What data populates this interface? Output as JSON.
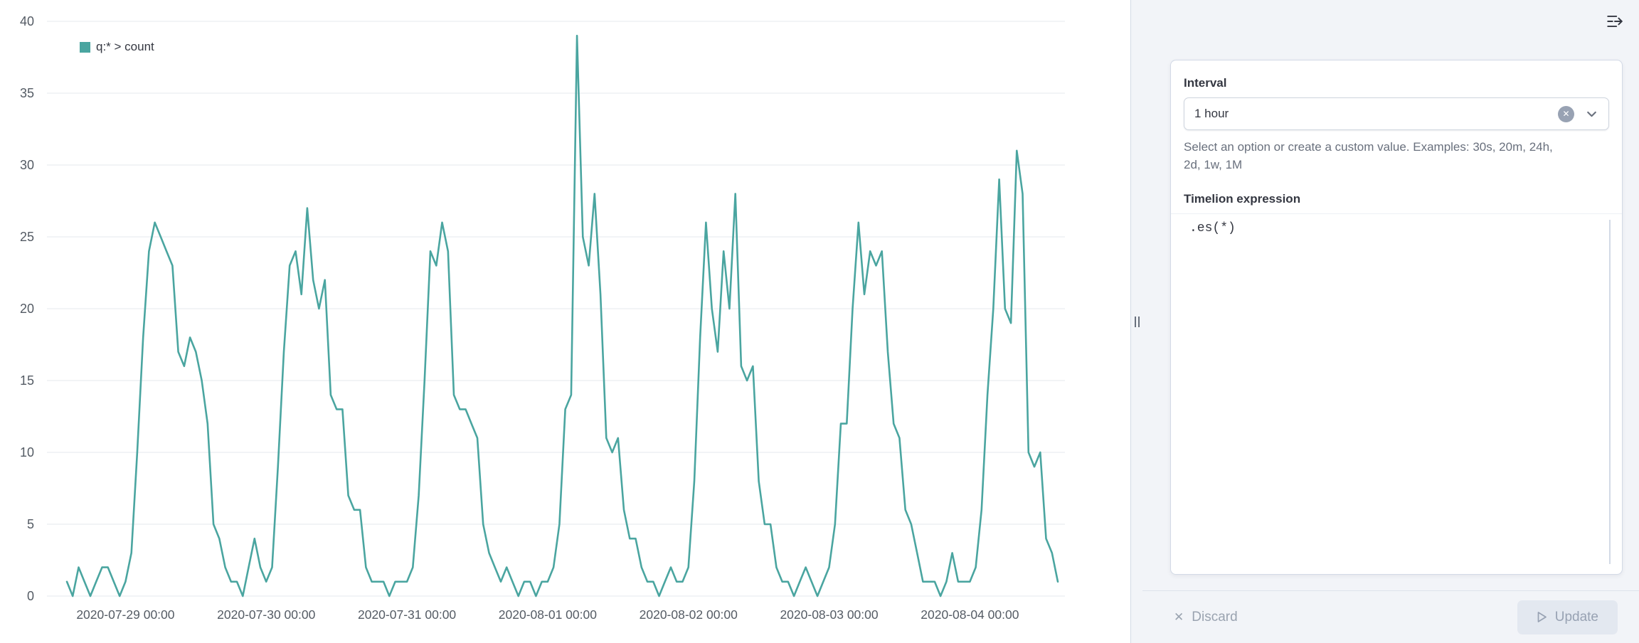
{
  "colors": {
    "accent_teal": "#4aa5a0",
    "panel_background": "#f2f4f8",
    "card_border": "#d3dae6",
    "disabled_text": "#98a2b3"
  },
  "panel": {
    "interval_label": "Interval",
    "interval_value": "1 hour",
    "interval_help": "Select an option or create a custom value. Examples: 30s, 20m, 24h, 2d, 1w, 1M",
    "expression_label": "Timelion expression",
    "expression_value": ".es(*)",
    "discard_label": "Discard",
    "update_label": "Update"
  },
  "chart_data": {
    "type": "line",
    "title": "",
    "legend_position": "top-left",
    "grid": true,
    "grid_color": "#e4e8ee",
    "axis_color": "#545b64",
    "ylim": [
      0,
      40
    ],
    "y_ticks": [
      0,
      5,
      10,
      15,
      20,
      25,
      30,
      35,
      40
    ],
    "x_start": "2020-07-28 14:00",
    "x_interval": "1 hour",
    "x_tick_labels": [
      "2020-07-29 00:00",
      "2020-07-30 00:00",
      "2020-07-31 00:00",
      "2020-08-01 00:00",
      "2020-08-02 00:00",
      "2020-08-03 00:00",
      "2020-08-04 00:00"
    ],
    "x_tick_first_index": 10,
    "x_tick_step": 24,
    "series": [
      {
        "name": "q:* > count",
        "color": "#4aa5a0",
        "values": [
          1,
          0,
          2,
          1,
          0,
          1,
          2,
          2,
          1,
          0,
          1,
          3,
          10,
          18,
          24,
          26,
          25,
          24,
          23,
          17,
          16,
          18,
          17,
          15,
          12,
          5,
          4,
          2,
          1,
          1,
          0,
          2,
          4,
          2,
          1,
          2,
          9,
          17,
          23,
          24,
          21,
          27,
          22,
          20,
          22,
          14,
          13,
          13,
          7,
          6,
          6,
          2,
          1,
          1,
          1,
          0,
          1,
          1,
          1,
          2,
          7,
          15,
          24,
          23,
          26,
          24,
          14,
          13,
          13,
          12,
          11,
          5,
          3,
          2,
          1,
          2,
          1,
          0,
          1,
          1,
          0,
          1,
          1,
          2,
          5,
          13,
          14,
          39,
          25,
          23,
          28,
          21,
          11,
          10,
          11,
          6,
          4,
          4,
          2,
          1,
          1,
          0,
          1,
          2,
          1,
          1,
          2,
          8,
          18,
          26,
          20,
          17,
          24,
          20,
          28,
          16,
          15,
          16,
          8,
          5,
          5,
          2,
          1,
          1,
          0,
          1,
          2,
          1,
          0,
          1,
          2,
          5,
          12,
          12,
          20,
          26,
          21,
          24,
          23,
          24,
          17,
          12,
          11,
          6,
          5,
          3,
          1,
          1,
          1,
          0,
          1,
          3,
          1,
          1,
          1,
          2,
          6,
          14,
          20,
          29,
          20,
          19,
          31,
          28,
          10,
          9,
          10,
          4,
          3,
          1
        ]
      }
    ]
  }
}
